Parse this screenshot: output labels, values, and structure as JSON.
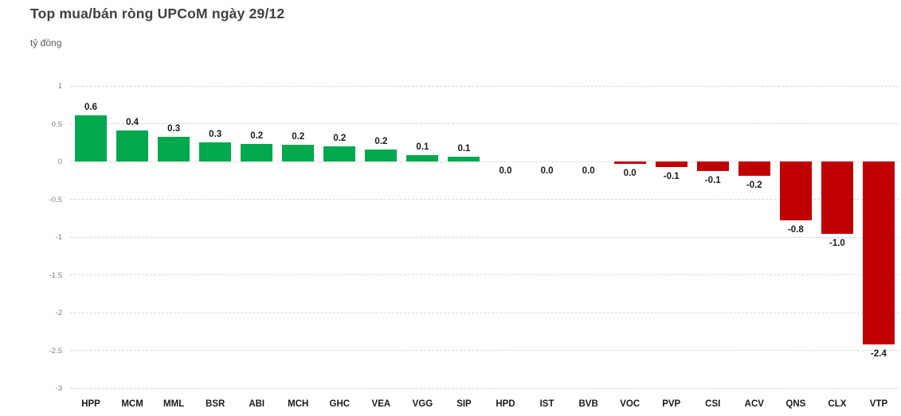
{
  "header": {
    "title": "Top mua/bán ròng UPCoM ngày 29/12",
    "unit_label": "tỷ đồng"
  },
  "chart_data": {
    "type": "bar",
    "title": "Top mua/bán ròng UPCoM ngày 29/12",
    "ylabel": "tỷ đồng",
    "xlabel": "",
    "grid": true,
    "legend": false,
    "ylim": [
      -3,
      1
    ],
    "categories": [
      "HPP",
      "MCM",
      "MML",
      "BSR",
      "ABI",
      "MCH",
      "GHC",
      "VEA",
      "VGG",
      "SIP",
      "HPD",
      "IST",
      "BVB",
      "VOC",
      "PVP",
      "CSI",
      "ACV",
      "QNS",
      "CLX",
      "VTP"
    ],
    "values": [
      0.61,
      0.41,
      0.33,
      0.25,
      0.23,
      0.22,
      0.2,
      0.16,
      0.08,
      0.06,
      0.0,
      0.0,
      0.0,
      -0.03,
      -0.07,
      -0.13,
      -0.19,
      -0.78,
      -0.96,
      -2.42
    ],
    "value_labels": [
      "0.6",
      "0.4",
      "0.3",
      "0.3",
      "0.2",
      "0.2",
      "0.2",
      "0.2",
      "0.1",
      "0.1",
      "0.0",
      "0.0",
      "0.0",
      "0.0",
      "-0.1",
      "-0.1",
      "-0.2",
      "-0.8",
      "-1.0",
      "-2.4"
    ],
    "yticks": [
      1,
      0.5,
      0,
      -0.5,
      -1,
      -1.5,
      -2,
      -2.5,
      -3
    ],
    "ytick_labels": [
      "1",
      "0.5",
      "0",
      "-0.5",
      "-1",
      "-1.5",
      "-2",
      "-2.5",
      "-3"
    ],
    "colors": {
      "positive": "#00a84e",
      "negative": "#c00000",
      "gridline": "#d9d9d9",
      "tick_text": "#808080",
      "label_text": "#1a1a1a",
      "title_text": "#404040",
      "background": "#ffffff"
    }
  }
}
